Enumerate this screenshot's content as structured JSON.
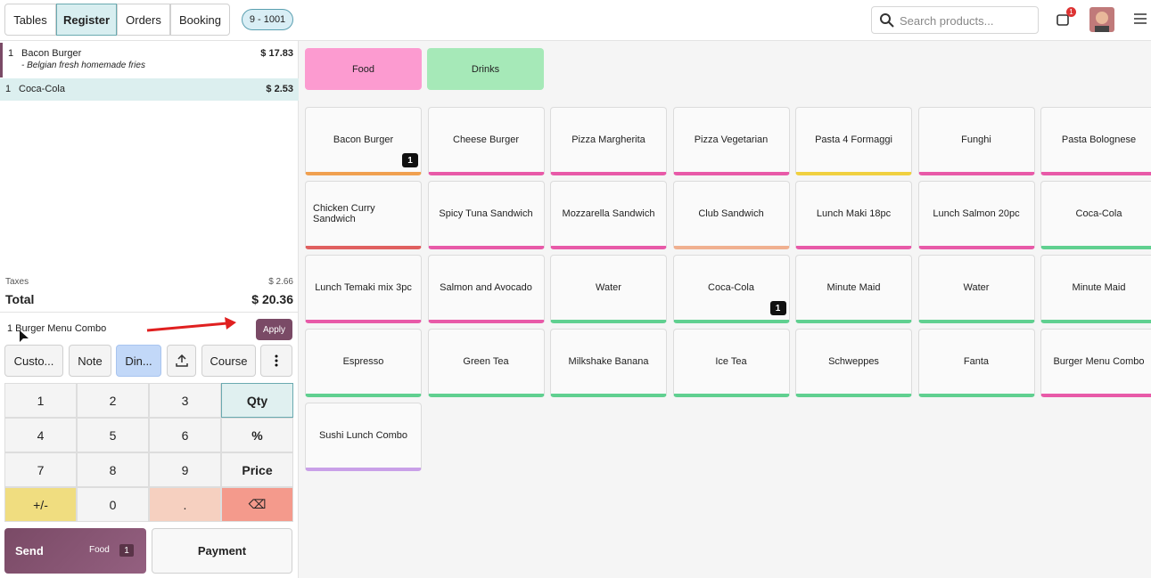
{
  "header": {
    "tabs": [
      "Tables",
      "Register",
      "Orders",
      "Booking"
    ],
    "active_tab": "Register",
    "order_ref": "9 - 1001",
    "search_placeholder": "Search products...",
    "notification_count": "1"
  },
  "order": {
    "lines": [
      {
        "qty": "1",
        "name": "Bacon Burger",
        "note": "- Belgian fresh homemade fries",
        "price": "$ 17.83"
      },
      {
        "qty": "1",
        "name": "Coca-Cola",
        "price": "$ 2.53"
      }
    ],
    "taxes_label": "Taxes",
    "taxes": "$ 2.66",
    "total_label": "Total",
    "total": "$ 20.36"
  },
  "suggestion": {
    "text": "1 Burger Menu Combo",
    "button": "Apply"
  },
  "actions": [
    "Custo...",
    "Note",
    "Din...",
    "Course"
  ],
  "numpad": [
    "1",
    "2",
    "3",
    "Qty",
    "4",
    "5",
    "6",
    "%",
    "7",
    "8",
    "9",
    "Price",
    "+/-",
    "0",
    ".",
    "⌫"
  ],
  "send": {
    "label": "Send",
    "category": "Food",
    "count": "1"
  },
  "payment": "Payment",
  "categories": [
    {
      "name": "Food",
      "color": "#fc9bd0"
    },
    {
      "name": "Drinks",
      "color": "#a6e9b8"
    }
  ],
  "products": [
    {
      "name": "Bacon Burger",
      "color": "#f0a050",
      "badge": "1"
    },
    {
      "name": "Cheese Burger",
      "color": "#e85aa8"
    },
    {
      "name": "Pizza Margherita",
      "color": "#e85aa8"
    },
    {
      "name": "Pizza Vegetarian",
      "color": "#e85aa8"
    },
    {
      "name": "Pasta 4 Formaggi",
      "color": "#f0d040"
    },
    {
      "name": "Funghi",
      "color": "#e85aa8"
    },
    {
      "name": "Pasta Bolognese",
      "color": "#e85aa8"
    },
    {
      "name": "Chicken Curry Sandwich",
      "color": "#e06060"
    },
    {
      "name": "Spicy Tuna Sandwich",
      "color": "#e85aa8"
    },
    {
      "name": "Mozzarella Sandwich",
      "color": "#e85aa8"
    },
    {
      "name": "Club Sandwich",
      "color": "#f0b090"
    },
    {
      "name": "Lunch Maki 18pc",
      "color": "#e85aa8"
    },
    {
      "name": "Lunch Salmon 20pc",
      "color": "#e85aa8"
    },
    {
      "name": "Coca-Cola",
      "color": "#60d090"
    },
    {
      "name": "Lunch Temaki mix 3pc",
      "color": "#e85aa8"
    },
    {
      "name": "Salmon and Avocado",
      "color": "#e85aa8"
    },
    {
      "name": "Water",
      "color": "#60d090"
    },
    {
      "name": "Coca-Cola",
      "color": "#60d090",
      "badge": "1"
    },
    {
      "name": "Minute Maid",
      "color": "#60d090"
    },
    {
      "name": "Water",
      "color": "#60d090"
    },
    {
      "name": "Minute Maid",
      "color": "#60d090"
    },
    {
      "name": "Espresso",
      "color": "#60d090"
    },
    {
      "name": "Green Tea",
      "color": "#60d090"
    },
    {
      "name": "Milkshake Banana",
      "color": "#60d090"
    },
    {
      "name": "Ice Tea",
      "color": "#60d090"
    },
    {
      "name": "Schweppes",
      "color": "#60d090"
    },
    {
      "name": "Fanta",
      "color": "#60d090"
    },
    {
      "name": "Burger Menu Combo",
      "color": "#e85aa8"
    },
    {
      "name": "Sushi Lunch Combo",
      "color": "#c9a0e8"
    }
  ]
}
